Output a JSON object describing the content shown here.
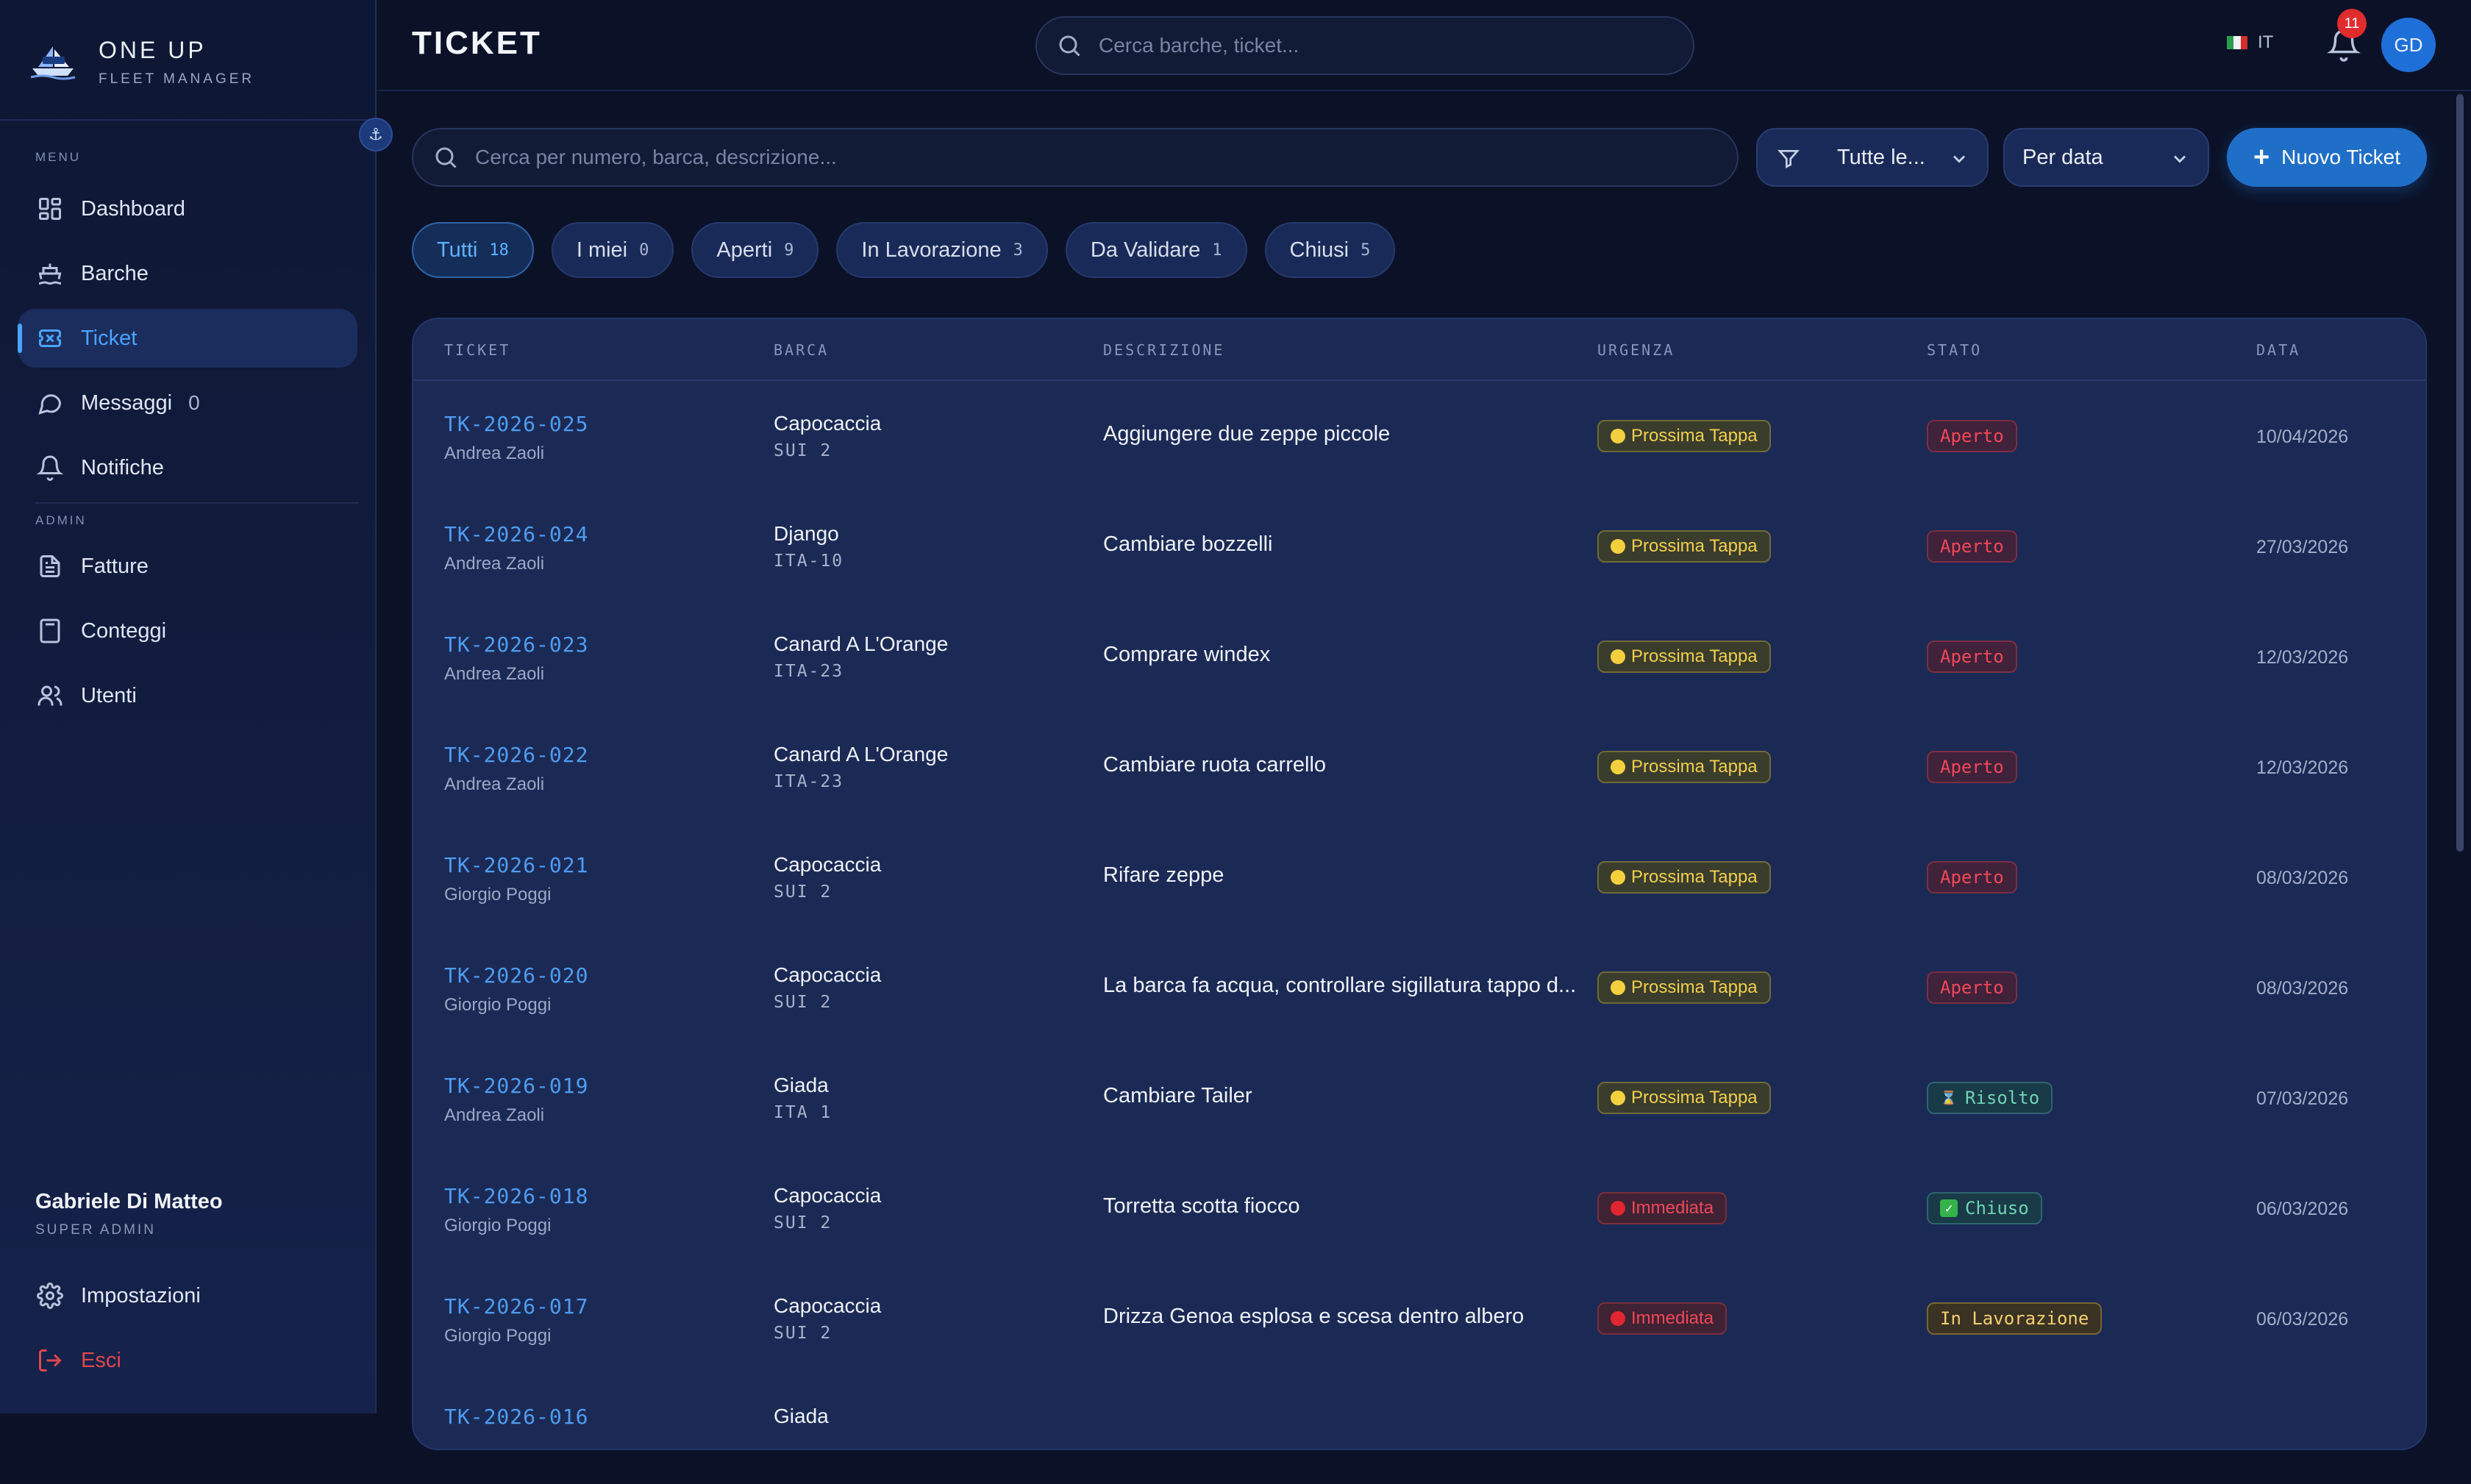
{
  "brand": {
    "name": "ONE UP",
    "subtitle": "FLEET MANAGER",
    "logo_icon": "boat-logo-icon"
  },
  "sidebar": {
    "menu_label": "MENU",
    "admin_label": "ADMIN",
    "items": [
      {
        "label": "Dashboard",
        "icon": "dashboard-icon"
      },
      {
        "label": "Barche",
        "icon": "boat-icon"
      },
      {
        "label": "Ticket",
        "icon": "ticket-icon",
        "active": true
      },
      {
        "label": "Messaggi",
        "icon": "message-icon",
        "count": "0"
      },
      {
        "label": "Notifiche",
        "icon": "bell-icon"
      }
    ],
    "admin_items": [
      {
        "label": "Fatture",
        "icon": "invoice-icon"
      },
      {
        "label": "Conteggi",
        "icon": "calculator-icon"
      },
      {
        "label": "Utenti",
        "icon": "users-icon"
      }
    ],
    "user": {
      "name": "Gabriele Di Matteo",
      "role": "SUPER ADMIN"
    },
    "settings_label": "Impostazioni",
    "logout_label": "Esci"
  },
  "topbar": {
    "title": "TICKET",
    "search_placeholder": "Cerca barche, ticket...",
    "language": "IT",
    "notification_count": "11",
    "avatar_initials": "GD"
  },
  "toolbar": {
    "search_placeholder": "Cerca per numero, barca, descrizione...",
    "filter_value": "Tutte le...",
    "sort_value": "Per data",
    "new_button": "Nuovo Ticket"
  },
  "tabs": [
    {
      "label": "Tutti",
      "count": "18",
      "active": true
    },
    {
      "label": "I miei",
      "count": "0"
    },
    {
      "label": "Aperti",
      "count": "9"
    },
    {
      "label": "In Lavorazione",
      "count": "3"
    },
    {
      "label": "Da Validare",
      "count": "1"
    },
    {
      "label": "Chiusi",
      "count": "5"
    }
  ],
  "table": {
    "headers": [
      "TICKET",
      "BARCA",
      "DESCRIZIONE",
      "URGENZA",
      "STATO",
      "DATA"
    ],
    "rows": [
      {
        "id": "TK-2026-025",
        "user": "Andrea Zaoli",
        "boat": "Capocaccia",
        "sail": "SUI 2",
        "desc": "Aggiungere due zeppe piccole",
        "urgency": "Prossima Tappa",
        "status": "Aperto",
        "date": "10/04/2026"
      },
      {
        "id": "TK-2026-024",
        "user": "Andrea Zaoli",
        "boat": "Django",
        "sail": "ITA-10",
        "desc": "Cambiare bozzelli",
        "urgency": "Prossima Tappa",
        "status": "Aperto",
        "date": "27/03/2026"
      },
      {
        "id": "TK-2026-023",
        "user": "Andrea Zaoli",
        "boat": "Canard A L'Orange",
        "sail": "ITA-23",
        "desc": "Comprare windex",
        "urgency": "Prossima Tappa",
        "status": "Aperto",
        "date": "12/03/2026"
      },
      {
        "id": "TK-2026-022",
        "user": "Andrea Zaoli",
        "boat": "Canard A L'Orange",
        "sail": "ITA-23",
        "desc": "Cambiare ruota carrello",
        "urgency": "Prossima Tappa",
        "status": "Aperto",
        "date": "12/03/2026"
      },
      {
        "id": "TK-2026-021",
        "user": "Giorgio Poggi",
        "boat": "Capocaccia",
        "sail": "SUI 2",
        "desc": "Rifare zeppe",
        "urgency": "Prossima Tappa",
        "status": "Aperto",
        "date": "08/03/2026"
      },
      {
        "id": "TK-2026-020",
        "user": "Giorgio Poggi",
        "boat": "Capocaccia",
        "sail": "SUI 2",
        "desc": "La barca fa acqua, controllare sigillatura tappo d...",
        "urgency": "Prossima Tappa",
        "status": "Aperto",
        "date": "08/03/2026"
      },
      {
        "id": "TK-2026-019",
        "user": "Andrea Zaoli",
        "boat": "Giada",
        "sail": "ITA 1",
        "desc": "Cambiare Tailer",
        "urgency": "Prossima Tappa",
        "status": "Risolto",
        "date": "07/03/2026"
      },
      {
        "id": "TK-2026-018",
        "user": "Giorgio Poggi",
        "boat": "Capocaccia",
        "sail": "SUI 2",
        "desc": "Torretta scotta fiocco",
        "urgency": "Immediata",
        "status": "Chiuso",
        "date": "06/03/2026"
      },
      {
        "id": "TK-2026-017",
        "user": "Giorgio Poggi",
        "boat": "Capocaccia",
        "sail": "SUI 2",
        "desc": "Drizza Genoa esplosa e scesa dentro albero",
        "urgency": "Immediata",
        "status": "In Lavorazione",
        "date": "06/03/2026"
      },
      {
        "id": "TK-2026-016",
        "user": "",
        "boat": "Giada",
        "sail": "",
        "desc": "",
        "urgency": "",
        "status": "",
        "date": ""
      }
    ]
  },
  "colors": {
    "accent": "#4aa3ff",
    "urgency_next_stop": "#f2cf4e",
    "urgency_immediate": "#f0485a",
    "status_open": "#f0485a",
    "status_resolved": "#6fd3b7",
    "status_in_progress": "#f2cf70"
  }
}
